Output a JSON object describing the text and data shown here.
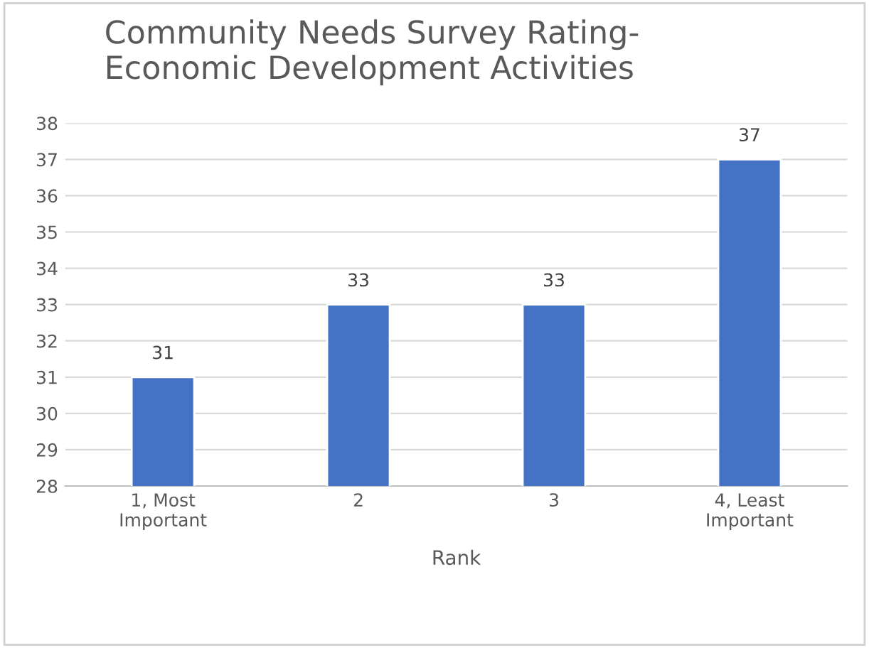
{
  "chart_data": {
    "type": "bar",
    "title": "Community Needs Survey Rating-\nEconomic Development Activities",
    "xlabel": "Rank",
    "categories": [
      "1, Most\nImportant",
      "2",
      "3",
      "4, Least\nImportant"
    ],
    "values": [
      31,
      33,
      33,
      37
    ],
    "color": "#4472c4",
    "ylim": [
      28,
      38
    ],
    "yticks": [
      28,
      29,
      30,
      31,
      32,
      33,
      34,
      35,
      36,
      37,
      38
    ],
    "grid": "y",
    "data_labels": true
  }
}
